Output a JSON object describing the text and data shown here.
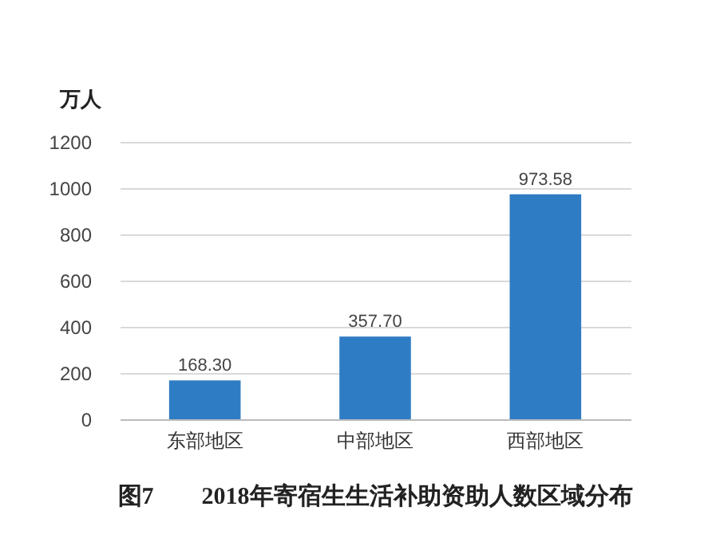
{
  "chart_data": {
    "type": "bar",
    "title": "图7　　2018年寄宿生生活补助资助人数区域分布",
    "ylabel": "万人",
    "categories": [
      "东部地区",
      "中部地区",
      "西部地区"
    ],
    "series": [
      {
        "color": "#2e7cc4",
        "values": [
          168.3,
          357.7,
          973.58
        ],
        "value_labels": [
          "168.30",
          "357.70",
          "973.58"
        ]
      }
    ],
    "ylim": [
      0,
      1200
    ],
    "yticks": [
      0,
      200,
      400,
      600,
      800,
      1000,
      1200
    ],
    "grid": "y"
  }
}
